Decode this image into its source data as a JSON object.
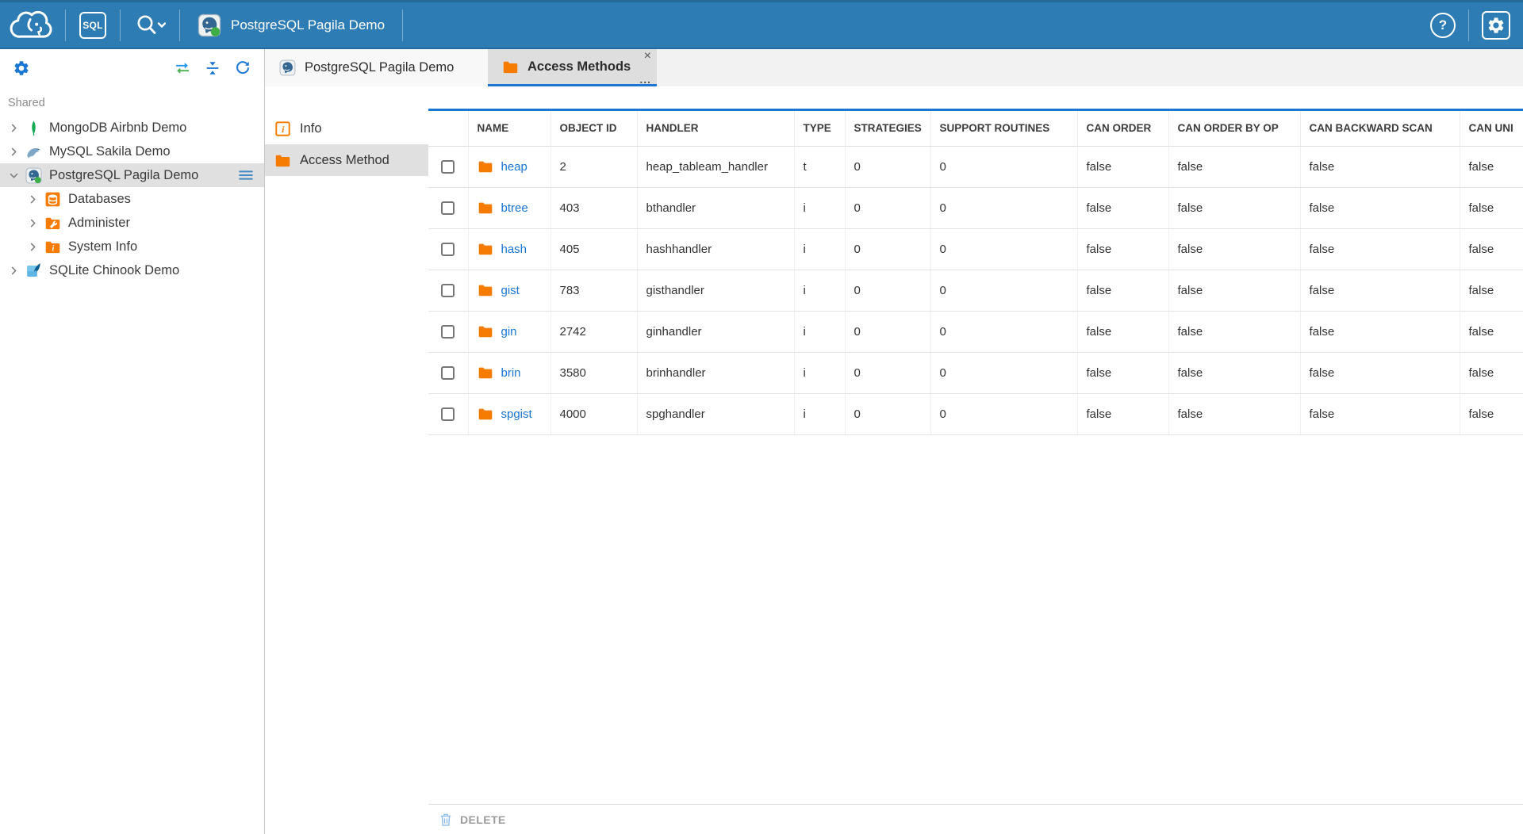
{
  "titlebar": {
    "sql_icon_label": "SQL",
    "connection_label": "PostgreSQL Pagila Demo",
    "help_glyph": "?"
  },
  "sidebar": {
    "section_label": "Shared",
    "items": [
      {
        "label": "MongoDB Airbnb Demo",
        "icon": "mongodb",
        "level": 0,
        "expanded": false,
        "selected": false
      },
      {
        "label": "MySQL Sakila Demo",
        "icon": "mysql",
        "level": 0,
        "expanded": false,
        "selected": false
      },
      {
        "label": "PostgreSQL Pagila Demo",
        "icon": "postgres",
        "level": 0,
        "expanded": true,
        "selected": true
      },
      {
        "label": "Databases",
        "icon": "databases",
        "level": 1,
        "expanded": false,
        "selected": false
      },
      {
        "label": "Administer",
        "icon": "administer",
        "level": 1,
        "expanded": false,
        "selected": false
      },
      {
        "label": "System Info",
        "icon": "systeminfo",
        "level": 1,
        "expanded": false,
        "selected": false
      },
      {
        "label": "SQLite Chinook Demo",
        "icon": "sqlite",
        "level": 0,
        "expanded": false,
        "selected": false
      }
    ]
  },
  "tabs": [
    {
      "label": "PostgreSQL Pagila Demo",
      "icon": "postgres-plain",
      "active": false
    },
    {
      "label": "Access Methods",
      "icon": "folder",
      "active": true,
      "close_glyph": "×",
      "more_glyph": "..."
    }
  ],
  "subpanel": {
    "items": [
      {
        "label": "Info",
        "icon": "info",
        "selected": false
      },
      {
        "label": "Access Method",
        "icon": "folder",
        "selected": true
      }
    ]
  },
  "grid": {
    "columns": [
      "NAME",
      "OBJECT ID",
      "HANDLER",
      "TYPE",
      "STRATEGIES",
      "SUPPORT ROUTINES",
      "CAN ORDER",
      "CAN ORDER BY OP",
      "CAN BACKWARD SCAN",
      "CAN UNI"
    ],
    "rows": [
      {
        "name": "heap",
        "cells": [
          "2",
          "heap_tableam_handler",
          "t",
          "0",
          "0",
          "false",
          "false",
          "false",
          "false"
        ]
      },
      {
        "name": "btree",
        "cells": [
          "403",
          "bthandler",
          "i",
          "0",
          "0",
          "false",
          "false",
          "false",
          "false"
        ]
      },
      {
        "name": "hash",
        "cells": [
          "405",
          "hashhandler",
          "i",
          "0",
          "0",
          "false",
          "false",
          "false",
          "false"
        ]
      },
      {
        "name": "gist",
        "cells": [
          "783",
          "gisthandler",
          "i",
          "0",
          "0",
          "false",
          "false",
          "false",
          "false"
        ]
      },
      {
        "name": "gin",
        "cells": [
          "2742",
          "ginhandler",
          "i",
          "0",
          "0",
          "false",
          "false",
          "false",
          "false"
        ]
      },
      {
        "name": "brin",
        "cells": [
          "3580",
          "brinhandler",
          "i",
          "0",
          "0",
          "false",
          "false",
          "false",
          "false"
        ]
      },
      {
        "name": "spgist",
        "cells": [
          "4000",
          "spghandler",
          "i",
          "0",
          "0",
          "false",
          "false",
          "false",
          "false"
        ]
      }
    ]
  },
  "footer": {
    "delete_label": "DELETE"
  },
  "colors": {
    "titlebar_blue": "#2d7cb4",
    "accent_blue": "#1976d2",
    "icon_orange": "#f57c00",
    "link_blue": "#1976d2",
    "status_green": "#3fae46",
    "selected_gray": "#e0e0e0"
  }
}
